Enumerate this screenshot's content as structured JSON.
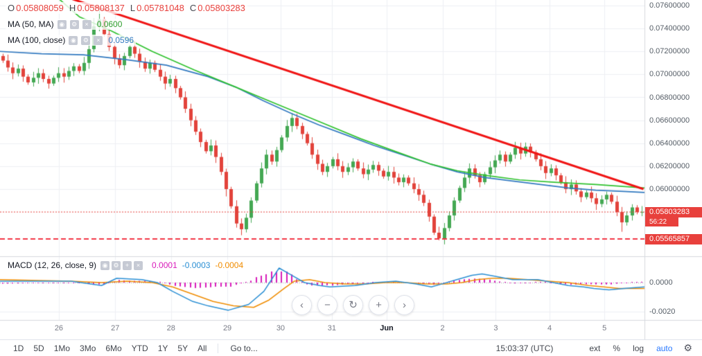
{
  "header": {
    "ohlc": [
      {
        "label": "O",
        "value": "0.05808059"
      },
      {
        "label": "H",
        "value": "0.05808137"
      },
      {
        "label": "L",
        "value": "0.05781048"
      },
      {
        "label": "C",
        "value": "0.05803283"
      }
    ],
    "indicators": [
      {
        "label": "MA (50, MA)",
        "value": "0.0600",
        "color": "#2e9e2d"
      },
      {
        "label": "MA (100, close)",
        "value": "0.0596",
        "color": "#3179c0"
      }
    ]
  },
  "macd_legend": {
    "label": "MACD (12, 26, close, 9)",
    "values": [
      {
        "text": "0.0001",
        "color": "#d81bba"
      },
      {
        "text": "-0.0003",
        "color": "#2a8fd4"
      },
      {
        "text": "-0.0004",
        "color": "#f08c00"
      }
    ]
  },
  "icons": {
    "legend": [
      {
        "glyph": "◉",
        "name": "eye-icon"
      },
      {
        "glyph": "⚙",
        "name": "gear-icon"
      },
      {
        "glyph": "×",
        "name": "close-icon"
      }
    ],
    "macd": [
      {
        "glyph": "◉",
        "name": "eye-icon"
      },
      {
        "glyph": "⚙",
        "name": "gear-icon"
      },
      {
        "glyph": "+",
        "name": "plus-icon"
      },
      {
        "glyph": "×",
        "name": "close-icon"
      }
    ]
  },
  "axes": {
    "price_ticks": [
      {
        "label": "0.07600000",
        "value": 0.076
      },
      {
        "label": "0.07400000",
        "value": 0.074
      },
      {
        "label": "0.07200000",
        "value": 0.072
      },
      {
        "label": "0.07000000",
        "value": 0.07
      },
      {
        "label": "0.06800000",
        "value": 0.068
      },
      {
        "label": "0.06600000",
        "value": 0.066
      },
      {
        "label": "0.06400000",
        "value": 0.064
      },
      {
        "label": "0.06200000",
        "value": 0.062
      },
      {
        "label": "0.06000000",
        "value": 0.06
      }
    ],
    "macd_ticks": [
      {
        "label": "0.0000",
        "value": 0
      },
      {
        "label": "-0.0020",
        "value": -20
      }
    ],
    "time_ticks": [
      {
        "label": "26",
        "idx": 11.6,
        "major": false
      },
      {
        "label": "27",
        "idx": 22.7,
        "major": false
      },
      {
        "label": "28",
        "idx": 33.7,
        "major": false
      },
      {
        "label": "29",
        "idx": 44.8,
        "major": false
      },
      {
        "label": "30",
        "idx": 55.3,
        "major": false
      },
      {
        "label": "31",
        "idx": 65.4,
        "major": false
      },
      {
        "label": "Jun",
        "idx": 76.2,
        "major": true
      },
      {
        "label": "2",
        "idx": 87.2,
        "major": false
      },
      {
        "label": "3",
        "idx": 97.7,
        "major": false
      },
      {
        "label": "4",
        "idx": 108.3,
        "major": false
      },
      {
        "label": "5",
        "idx": 119.1,
        "major": false
      }
    ]
  },
  "price_labels": {
    "current": {
      "text": "0.05803283",
      "value": 0.05803283
    },
    "countdown": "56:22",
    "support": {
      "text": "0.05565857",
      "value": 0.05565857
    }
  },
  "nav": [
    {
      "glyph": "‹",
      "name": "pan-left-button"
    },
    {
      "glyph": "−",
      "name": "zoom-out-button"
    },
    {
      "glyph": "↻",
      "name": "reset-view-button"
    },
    {
      "glyph": "+",
      "name": "zoom-in-button"
    },
    {
      "glyph": "›",
      "name": "pan-right-button"
    }
  ],
  "toolbar": {
    "ranges": [
      "1D",
      "5D",
      "1Mo",
      "3Mo",
      "6Mo",
      "YTD",
      "1Y",
      "5Y",
      "All"
    ],
    "goto": "Go to...",
    "clock": "15:03:37 (UTC)",
    "scales": [
      {
        "label": "ext",
        "accent": false
      },
      {
        "label": "%",
        "accent": false
      },
      {
        "label": "log",
        "accent": false
      },
      {
        "label": "auto",
        "accent": true
      }
    ],
    "settings_icon": "⚙"
  },
  "colors": {
    "up": "#44a853",
    "down": "#e2433b",
    "ma50": "#2fc22e",
    "ma100": "#3179c0",
    "trend": "#f01414",
    "level": "#f23645",
    "current": "#e8403c",
    "macd_line": "#2a8fd4",
    "signal_line": "#f08c00",
    "hist": "#d81bba",
    "grid": "#eef0f3",
    "divider": "#d6d9de",
    "axis_text": "#555d66",
    "tag_bg": "#e8403c"
  },
  "chart_data": {
    "type": "candlestick",
    "price_unit": 0.0001,
    "first_open": 716,
    "closes": [
      712,
      706,
      701,
      705,
      698,
      693,
      697,
      701,
      696,
      692,
      697,
      701,
      698,
      703,
      707,
      703,
      710,
      722,
      742,
      748,
      735,
      724,
      714,
      708,
      716,
      724,
      718,
      711,
      705,
      710,
      704,
      698,
      692,
      696,
      688,
      680,
      670,
      660,
      650,
      641,
      633,
      638,
      628,
      615,
      600,
      585,
      570,
      565,
      575,
      590,
      605,
      618,
      630,
      624,
      634,
      645,
      655,
      662,
      655,
      648,
      640,
      630,
      622,
      615,
      620,
      626,
      620,
      615,
      619,
      624,
      618,
      613,
      617,
      621,
      616,
      611,
      615,
      610,
      606,
      610,
      605,
      600,
      595,
      588,
      576,
      562,
      557,
      566,
      577,
      590,
      601,
      610,
      618,
      612,
      606,
      613,
      619,
      625,
      630,
      624,
      630,
      636,
      631,
      637,
      632,
      626,
      620,
      614,
      618,
      612,
      606,
      600,
      604,
      598,
      593,
      597,
      592,
      587,
      591,
      595,
      589,
      580,
      571,
      577,
      584,
      580,
      580
    ],
    "wick_up": {
      "18": 3,
      "19": 6
    },
    "wick_dn": {
      "44": 2,
      "86": -2,
      "122": 3
    },
    "ma50_points": [
      [
        10,
        772
      ],
      [
        15.7,
        750
      ],
      [
        21.9,
        738
      ],
      [
        30,
        720
      ],
      [
        38.2,
        704
      ],
      [
        46.4,
        689
      ],
      [
        54.6,
        674
      ],
      [
        62.8,
        659
      ],
      [
        71,
        644
      ],
      [
        77.8,
        633
      ],
      [
        84.7,
        622
      ],
      [
        90.1,
        616
      ],
      [
        95.6,
        612
      ],
      [
        102.4,
        608
      ],
      [
        109.2,
        606
      ],
      [
        117.4,
        604
      ],
      [
        127,
        601
      ]
    ],
    "ma100_points": [
      [
        0,
        720
      ],
      [
        8.2,
        718
      ],
      [
        16.4,
        717
      ],
      [
        24.6,
        713
      ],
      [
        32.8,
        708
      ],
      [
        41,
        698
      ],
      [
        46.4,
        689
      ],
      [
        51.9,
        677
      ],
      [
        57.4,
        666
      ],
      [
        62.8,
        656
      ],
      [
        68.3,
        647
      ],
      [
        73.7,
        638
      ],
      [
        79.2,
        630
      ],
      [
        84.7,
        622
      ],
      [
        90.1,
        615
      ],
      [
        95.6,
        610
      ],
      [
        101,
        607
      ],
      [
        106.5,
        604
      ],
      [
        112,
        601
      ],
      [
        117.4,
        599
      ],
      [
        122.9,
        598
      ],
      [
        127,
        597
      ]
    ],
    "trendline": {
      "from": [
        14,
        766
      ],
      "to": [
        126.8,
        600
      ]
    },
    "support_level": 0.05565857,
    "current_price": 0.05803283,
    "macd_unit": 0.0001,
    "macd_points": [
      [
        0,
        1
      ],
      [
        14,
        1
      ],
      [
        20,
        -2
      ],
      [
        23,
        3
      ],
      [
        28,
        2
      ],
      [
        31,
        0
      ],
      [
        34,
        -6
      ],
      [
        38,
        -13
      ],
      [
        41,
        -16
      ],
      [
        45,
        -19
      ],
      [
        49,
        -15
      ],
      [
        52,
        -6
      ],
      [
        55,
        10
      ],
      [
        57,
        6
      ],
      [
        60,
        0
      ],
      [
        63,
        -2
      ],
      [
        65,
        -3
      ],
      [
        70,
        -2
      ],
      [
        74,
        0
      ],
      [
        78,
        1
      ],
      [
        82,
        -1
      ],
      [
        85,
        -3
      ],
      [
        87,
        -1
      ],
      [
        90,
        2
      ],
      [
        93,
        5
      ],
      [
        95,
        6
      ],
      [
        98,
        4
      ],
      [
        101,
        2
      ],
      [
        106,
        2
      ],
      [
        109,
        0
      ],
      [
        112,
        -2
      ],
      [
        115,
        -3
      ],
      [
        117,
        -4
      ],
      [
        120,
        -5
      ],
      [
        123,
        -4
      ],
      [
        127,
        -3
      ]
    ],
    "signal_points": [
      [
        0,
        2
      ],
      [
        14,
        1
      ],
      [
        20,
        0
      ],
      [
        25,
        1
      ],
      [
        30,
        0
      ],
      [
        34,
        -3
      ],
      [
        38,
        -8
      ],
      [
        42,
        -13
      ],
      [
        46,
        -16
      ],
      [
        50,
        -17
      ],
      [
        53,
        -12
      ],
      [
        56,
        -4
      ],
      [
        58,
        1
      ],
      [
        61,
        2
      ],
      [
        64,
        0
      ],
      [
        68,
        -1
      ],
      [
        72,
        -1
      ],
      [
        76,
        0
      ],
      [
        80,
        0
      ],
      [
        84,
        -1
      ],
      [
        88,
        -1
      ],
      [
        91,
        0
      ],
      [
        94,
        2
      ],
      [
        97,
        3
      ],
      [
        100,
        3
      ],
      [
        104,
        2
      ],
      [
        108,
        1
      ],
      [
        112,
        0
      ],
      [
        116,
        -2
      ],
      [
        119,
        -3
      ],
      [
        122,
        -4
      ],
      [
        125,
        -4
      ],
      [
        127,
        -4
      ]
    ]
  }
}
